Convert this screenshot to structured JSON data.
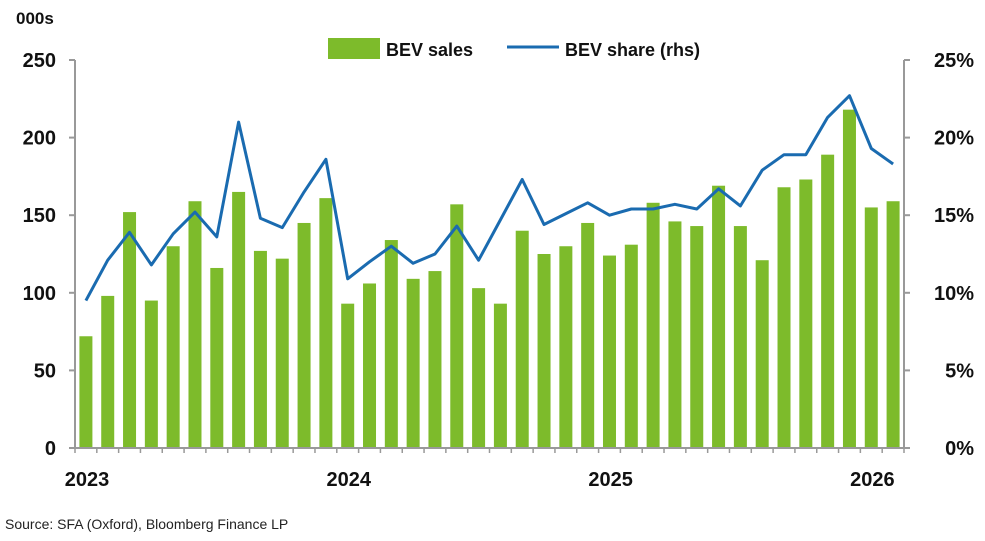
{
  "chart_data": {
    "type": "bar",
    "left_unit": "000s",
    "source": "Source: SFA (Oxford), Bloomberg Finance LP",
    "colors": {
      "bar": "#7DBB2B",
      "line": "#1A6BB0",
      "axis": "#999999"
    },
    "left_axis": {
      "ylim": [
        0,
        250
      ],
      "ticks": [
        "0",
        "50",
        "100",
        "150",
        "200",
        "250"
      ]
    },
    "right_axis": {
      "ylim": [
        0,
        25
      ],
      "ticks": [
        "0%",
        "5%",
        "10%",
        "15%",
        "20%",
        "25%"
      ]
    },
    "x_ticks": [
      {
        "label": "2023",
        "index": 0
      },
      {
        "label": "2024",
        "index": 12
      },
      {
        "label": "2025",
        "index": 24
      },
      {
        "label": "2026",
        "index": 36
      }
    ],
    "months": [
      "2023-01",
      "2023-02",
      "2023-03",
      "2023-04",
      "2023-05",
      "2023-06",
      "2023-07",
      "2023-08",
      "2023-09",
      "2023-10",
      "2023-11",
      "2023-12",
      "2024-01",
      "2024-02",
      "2024-03",
      "2024-04",
      "2024-05",
      "2024-06",
      "2024-07",
      "2024-08",
      "2024-09",
      "2024-10",
      "2024-11",
      "2024-12",
      "2025-01",
      "2025-02",
      "2025-03",
      "2025-04",
      "2025-05",
      "2025-06",
      "2025-07",
      "2025-08",
      "2025-09",
      "2025-10",
      "2025-11",
      "2025-12",
      "2026-01",
      "2026-02"
    ],
    "series": [
      {
        "name": "BEV sales",
        "kind": "bar",
        "axis": "left",
        "values": [
          72,
          98,
          152,
          95,
          130,
          159,
          116,
          165,
          127,
          122,
          145,
          161,
          93,
          106,
          134,
          109,
          114,
          157,
          103,
          93,
          140,
          125,
          130,
          145,
          124,
          131,
          158,
          146,
          143,
          169,
          143,
          121,
          168,
          173,
          189,
          218,
          155,
          159
        ]
      },
      {
        "name": "BEV share (rhs)",
        "kind": "line",
        "axis": "right",
        "values": [
          9.5,
          12.1,
          13.9,
          11.8,
          13.8,
          15.2,
          13.6,
          21.0,
          14.8,
          14.2,
          16.5,
          18.6,
          10.9,
          12.0,
          13.0,
          11.9,
          12.5,
          14.3,
          12.1,
          14.7,
          17.3,
          14.4,
          15.1,
          15.8,
          15.0,
          15.4,
          15.4,
          15.7,
          15.4,
          16.7,
          15.6,
          17.9,
          18.9,
          18.9,
          21.3,
          22.7,
          19.3,
          18.3
        ]
      }
    ]
  }
}
